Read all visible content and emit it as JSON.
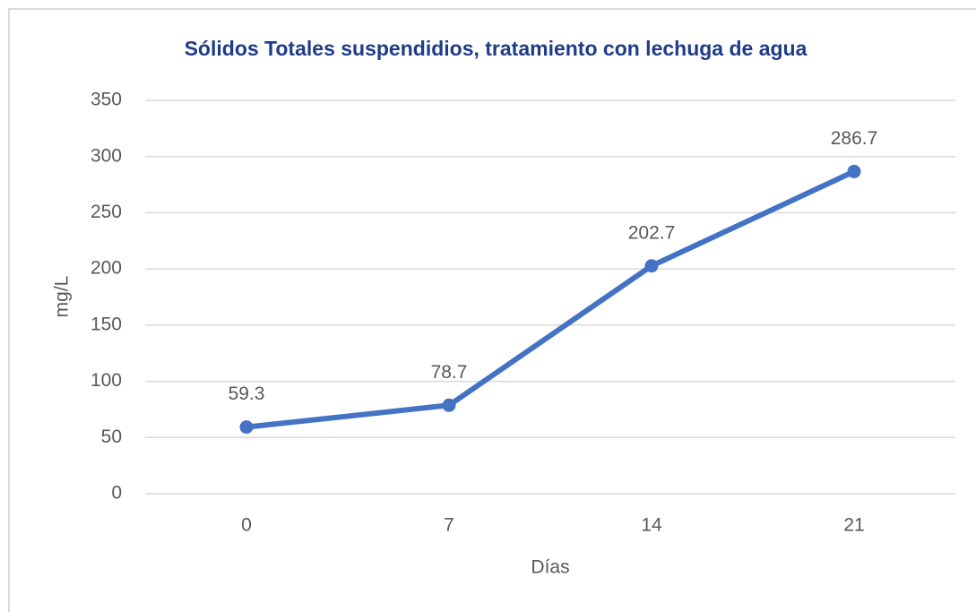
{
  "chart_data": {
    "type": "line",
    "title": "Sólidos Totales suspendidios, tratamiento con lechuga de agua",
    "x_label": "Días",
    "y_label": "mg/L",
    "categories": [
      "0",
      "7",
      "14",
      "21"
    ],
    "series": [
      {
        "name": "mg/L",
        "color": "#4472c4",
        "values": [
          59.3,
          78.7,
          202.7,
          286.7
        ]
      }
    ],
    "ylim": [
      0,
      350
    ],
    "yticks": [
      0,
      50,
      100,
      150,
      200,
      250,
      300,
      350
    ],
    "grid": true
  }
}
